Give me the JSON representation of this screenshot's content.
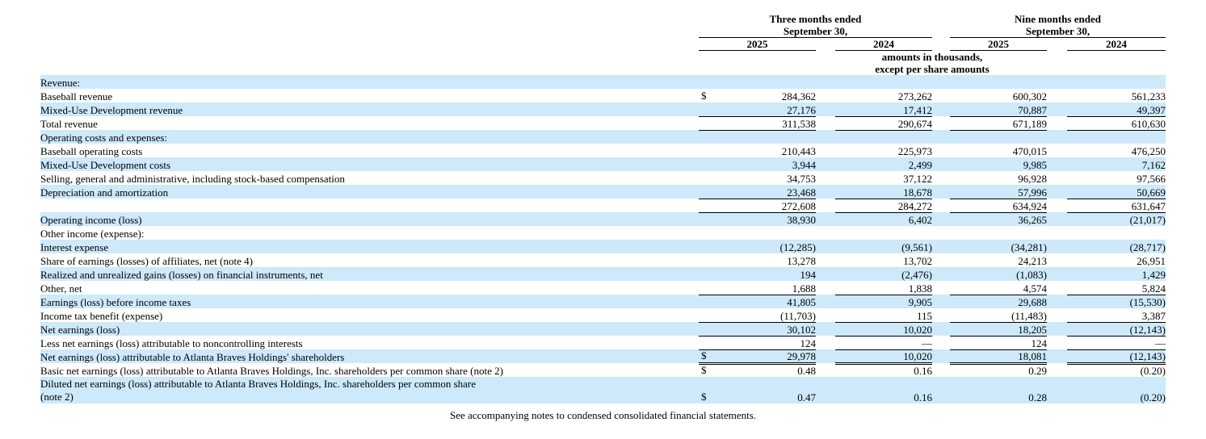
{
  "colors": {
    "row_shade": "#cde9fa",
    "text": "#000000",
    "background": "#ffffff"
  },
  "table": {
    "header": {
      "groups": [
        {
          "line1": "Three months ended",
          "line2": "September 30,",
          "years": [
            "2025",
            "2024"
          ]
        },
        {
          "line1": "Nine months ended",
          "line2": "September 30,",
          "years": [
            "2025",
            "2024"
          ]
        }
      ],
      "units_line1": "amounts in thousands,",
      "units_line2": "except per share amounts"
    },
    "rows": [
      {
        "label": "Revenue:",
        "indent": 0,
        "shaded": true,
        "values": [
          "",
          "",
          "",
          ""
        ]
      },
      {
        "label": "Baseball revenue",
        "indent": 1,
        "shaded": false,
        "currency": "$",
        "values": [
          "284,362",
          "273,262",
          "600,302",
          "561,233"
        ]
      },
      {
        "label": "Mixed-Use Development revenue",
        "indent": 1,
        "shaded": true,
        "rule": "single",
        "values": [
          "27,176",
          "17,412",
          "70,887",
          "49,397"
        ]
      },
      {
        "label": "Total revenue",
        "indent": 0,
        "shaded": false,
        "rule": "single",
        "values": [
          "311,538",
          "290,674",
          "671,189",
          "610,630"
        ]
      },
      {
        "label": "Operating costs and expenses:",
        "indent": 0,
        "shaded": true,
        "values": [
          "",
          "",
          "",
          ""
        ]
      },
      {
        "label": "Baseball operating costs",
        "indent": 1,
        "shaded": false,
        "values": [
          "210,443",
          "225,973",
          "470,015",
          "476,250"
        ]
      },
      {
        "label": "Mixed-Use Development costs",
        "indent": 1,
        "shaded": true,
        "values": [
          "3,944",
          "2,499",
          "9,985",
          "7,162"
        ]
      },
      {
        "label": "Selling, general and administrative, including stock-based compensation",
        "indent": 1,
        "shaded": false,
        "values": [
          "34,753",
          "37,122",
          "96,928",
          "97,566"
        ]
      },
      {
        "label": "Depreciation and amortization",
        "indent": 1,
        "shaded": true,
        "rule": "single",
        "values": [
          "23,468",
          "18,678",
          "57,996",
          "50,669"
        ]
      },
      {
        "label": "",
        "indent": 0,
        "shaded": false,
        "rule": "single",
        "values": [
          "272,608",
          "284,272",
          "634,924",
          "631,647"
        ]
      },
      {
        "label": "Operating income (loss)",
        "indent": 2,
        "shaded": true,
        "values": [
          "38,930",
          "6,402",
          "36,265",
          "(21,017)"
        ]
      },
      {
        "label": "Other income (expense):",
        "indent": 0,
        "shaded": false,
        "values": [
          "",
          "",
          "",
          ""
        ]
      },
      {
        "label": "Interest expense",
        "indent": 1,
        "shaded": true,
        "values": [
          "(12,285)",
          "(9,561)",
          "(34,281)",
          "(28,717)"
        ]
      },
      {
        "label": "Share of earnings (losses) of affiliates, net (note 4)",
        "indent": 1,
        "shaded": false,
        "values": [
          "13,278",
          "13,702",
          "24,213",
          "26,951"
        ]
      },
      {
        "label": "Realized and unrealized gains (losses) on financial instruments, net",
        "indent": 1,
        "shaded": true,
        "values": [
          "194",
          "(2,476)",
          "(1,083)",
          "1,429"
        ]
      },
      {
        "label": "Other, net",
        "indent": 1,
        "shaded": false,
        "rule": "single",
        "values": [
          "1,688",
          "1,838",
          "4,574",
          "5,824"
        ]
      },
      {
        "label": "Earnings (loss) before income taxes",
        "indent": 0,
        "shaded": true,
        "values": [
          "41,805",
          "9,905",
          "29,688",
          "(15,530)"
        ]
      },
      {
        "label": "Income tax benefit (expense)",
        "indent": 1,
        "shaded": false,
        "rule": "single",
        "values": [
          "(11,703)",
          "115",
          "(11,483)",
          "3,387"
        ]
      },
      {
        "label": "Net earnings (loss)",
        "indent": 0,
        "shaded": true,
        "rule": "single",
        "values": [
          "30,102",
          "10,020",
          "18,205",
          "(12,143)"
        ]
      },
      {
        "label": "Less net earnings (loss) attributable to noncontrolling interests",
        "indent": 1,
        "shaded": false,
        "rule": "single",
        "values": [
          "124",
          "—",
          "124",
          "—"
        ]
      },
      {
        "label": "Net earnings (loss) attributable to Atlanta Braves Holdings' shareholders",
        "indent": 0,
        "shaded": true,
        "rule": "double",
        "currency": "$",
        "values": [
          "29,978",
          "10,020",
          "18,081",
          "(12,143)"
        ]
      },
      {
        "label": "Basic net earnings (loss) attributable to Atlanta Braves Holdings, Inc. shareholders per common share (note 2)",
        "indent": 0,
        "shaded": false,
        "currency": "$",
        "values": [
          "0.48",
          "0.16",
          "0.29",
          "(0.20)"
        ]
      },
      {
        "label": "Diluted net earnings (loss) attributable to Atlanta Braves Holdings, Inc. shareholders per common share",
        "label2": "(note 2)",
        "indent": 0,
        "shaded": true,
        "currency": "$",
        "values": [
          "0.47",
          "0.16",
          "0.28",
          "(0.20)"
        ]
      }
    ]
  },
  "footer": {
    "note": "See accompanying notes to condensed consolidated financial statements."
  }
}
